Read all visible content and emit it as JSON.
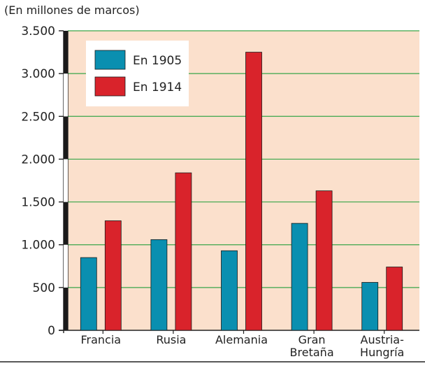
{
  "chart_data": {
    "type": "bar",
    "title": "",
    "unit_label": "(En millones de marcos)",
    "xlabel": "",
    "ylabel": "",
    "ylim": [
      0,
      3500
    ],
    "y_ticks": [
      0,
      500,
      1000,
      1500,
      2000,
      2500,
      3000,
      3500
    ],
    "y_tick_labels": [
      "0",
      "500",
      "1.000",
      "1.500",
      "2.000",
      "2.500",
      "3.000",
      "3.500"
    ],
    "categories": [
      [
        "Francia"
      ],
      [
        "Rusia"
      ],
      [
        "Alemania"
      ],
      [
        "Gran",
        "Bretaña"
      ],
      [
        "Austria-",
        "Hungría"
      ]
    ],
    "series": [
      {
        "name": "En 1905",
        "color": "#0a8fb0",
        "values": [
          850,
          1060,
          930,
          1250,
          560
        ]
      },
      {
        "name": "En 1914",
        "color": "#d9232b",
        "values": [
          1280,
          1840,
          3250,
          1630,
          740
        ]
      }
    ],
    "grid": true,
    "legend_position": "top-left",
    "colors": {
      "plot_background": "#fbe0cc",
      "grid": "#3aa64a",
      "axis": "#222222",
      "legend_background": "#ffffff"
    }
  }
}
